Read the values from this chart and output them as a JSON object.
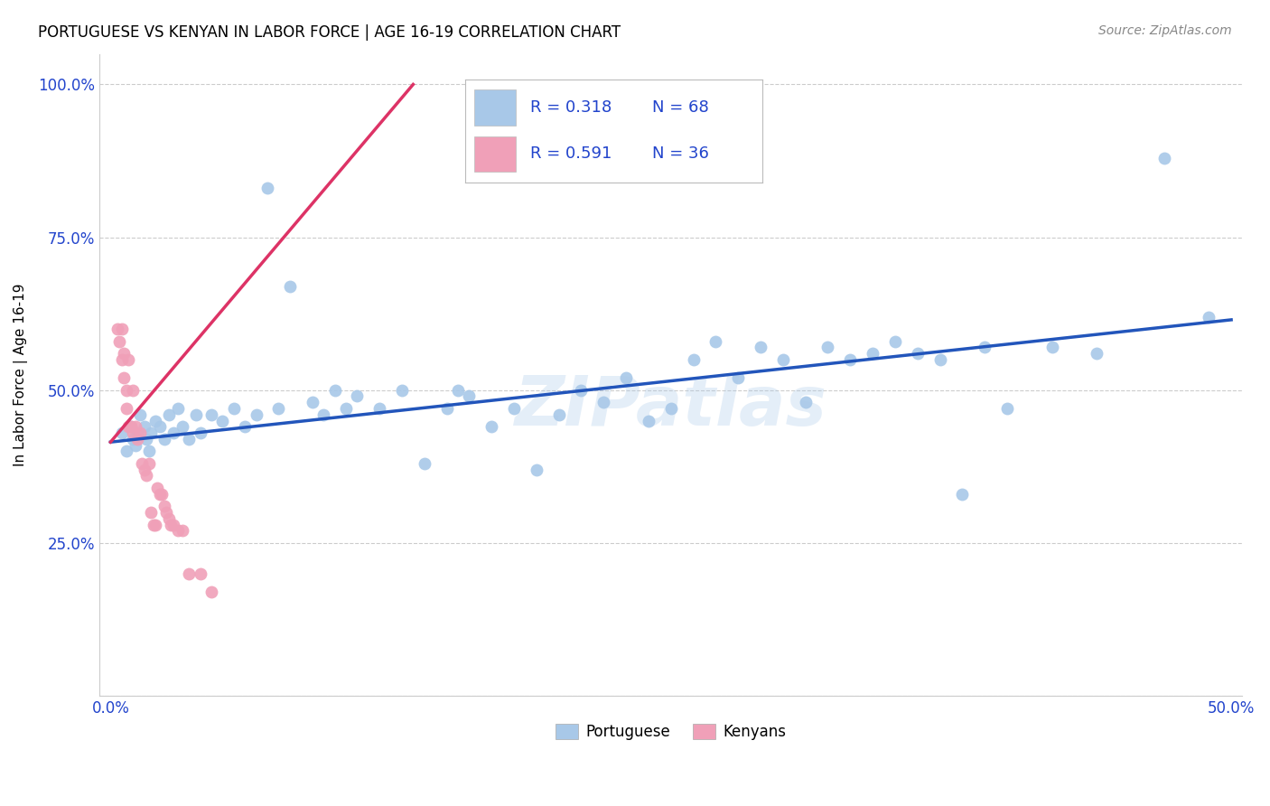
{
  "title": "PORTUGUESE VS KENYAN IN LABOR FORCE | AGE 16-19 CORRELATION CHART",
  "source": "Source: ZipAtlas.com",
  "ylabel": "In Labor Force | Age 16-19",
  "watermark": "ZIPatlas",
  "xlim": [
    -0.005,
    0.505
  ],
  "ylim": [
    0.0,
    1.05
  ],
  "xticks": [
    0.0,
    0.1,
    0.2,
    0.3,
    0.4,
    0.5
  ],
  "xticklabels": [
    "0.0%",
    "",
    "",
    "",
    "",
    "50.0%"
  ],
  "yticks": [
    0.0,
    0.25,
    0.5,
    0.75,
    1.0
  ],
  "yticklabels": [
    "",
    "25.0%",
    "50.0%",
    "75.0%",
    "100.0%"
  ],
  "blue_color": "#a8c8e8",
  "pink_color": "#f0a0b8",
  "blue_line_color": "#2255bb",
  "pink_line_color": "#dd3366",
  "legend_text_color": "#2244cc",
  "R_blue": 0.318,
  "N_blue": 68,
  "R_pink": 0.591,
  "N_pink": 36,
  "portuguese_x": [
    0.005,
    0.007,
    0.009,
    0.01,
    0.011,
    0.012,
    0.013,
    0.015,
    0.016,
    0.017,
    0.018,
    0.02,
    0.022,
    0.024,
    0.026,
    0.028,
    0.03,
    0.032,
    0.035,
    0.038,
    0.04,
    0.045,
    0.05,
    0.055,
    0.06,
    0.065,
    0.07,
    0.075,
    0.08,
    0.09,
    0.095,
    0.1,
    0.105,
    0.11,
    0.12,
    0.13,
    0.14,
    0.15,
    0.155,
    0.16,
    0.17,
    0.18,
    0.19,
    0.2,
    0.21,
    0.22,
    0.23,
    0.24,
    0.25,
    0.26,
    0.27,
    0.28,
    0.29,
    0.3,
    0.31,
    0.32,
    0.33,
    0.34,
    0.35,
    0.36,
    0.37,
    0.38,
    0.39,
    0.4,
    0.42,
    0.44,
    0.47,
    0.49
  ],
  "portuguese_y": [
    0.43,
    0.4,
    0.44,
    0.42,
    0.41,
    0.43,
    0.46,
    0.44,
    0.42,
    0.4,
    0.43,
    0.45,
    0.44,
    0.42,
    0.46,
    0.43,
    0.47,
    0.44,
    0.42,
    0.46,
    0.43,
    0.46,
    0.45,
    0.47,
    0.44,
    0.46,
    0.83,
    0.47,
    0.67,
    0.48,
    0.46,
    0.5,
    0.47,
    0.49,
    0.47,
    0.5,
    0.38,
    0.47,
    0.5,
    0.49,
    0.44,
    0.47,
    0.37,
    0.46,
    0.5,
    0.48,
    0.52,
    0.45,
    0.47,
    0.55,
    0.58,
    0.52,
    0.57,
    0.55,
    0.48,
    0.57,
    0.55,
    0.56,
    0.58,
    0.56,
    0.55,
    0.33,
    0.57,
    0.47,
    0.57,
    0.56,
    0.88,
    0.62
  ],
  "kenyan_x": [
    0.003,
    0.004,
    0.005,
    0.005,
    0.006,
    0.006,
    0.007,
    0.007,
    0.008,
    0.008,
    0.009,
    0.01,
    0.01,
    0.011,
    0.012,
    0.013,
    0.014,
    0.015,
    0.016,
    0.017,
    0.018,
    0.019,
    0.02,
    0.021,
    0.022,
    0.023,
    0.024,
    0.025,
    0.026,
    0.027,
    0.028,
    0.03,
    0.032,
    0.035,
    0.04,
    0.045
  ],
  "kenyan_y": [
    0.6,
    0.58,
    0.6,
    0.55,
    0.56,
    0.52,
    0.5,
    0.47,
    0.55,
    0.44,
    0.44,
    0.43,
    0.5,
    0.44,
    0.42,
    0.43,
    0.38,
    0.37,
    0.36,
    0.38,
    0.3,
    0.28,
    0.28,
    0.34,
    0.33,
    0.33,
    0.31,
    0.3,
    0.29,
    0.28,
    0.28,
    0.27,
    0.27,
    0.2,
    0.2,
    0.17
  ],
  "blue_line_x": [
    0.0,
    0.5
  ],
  "blue_line_y": [
    0.415,
    0.615
  ],
  "pink_line_x": [
    0.0,
    0.135
  ],
  "pink_line_y": [
    0.415,
    1.0
  ]
}
